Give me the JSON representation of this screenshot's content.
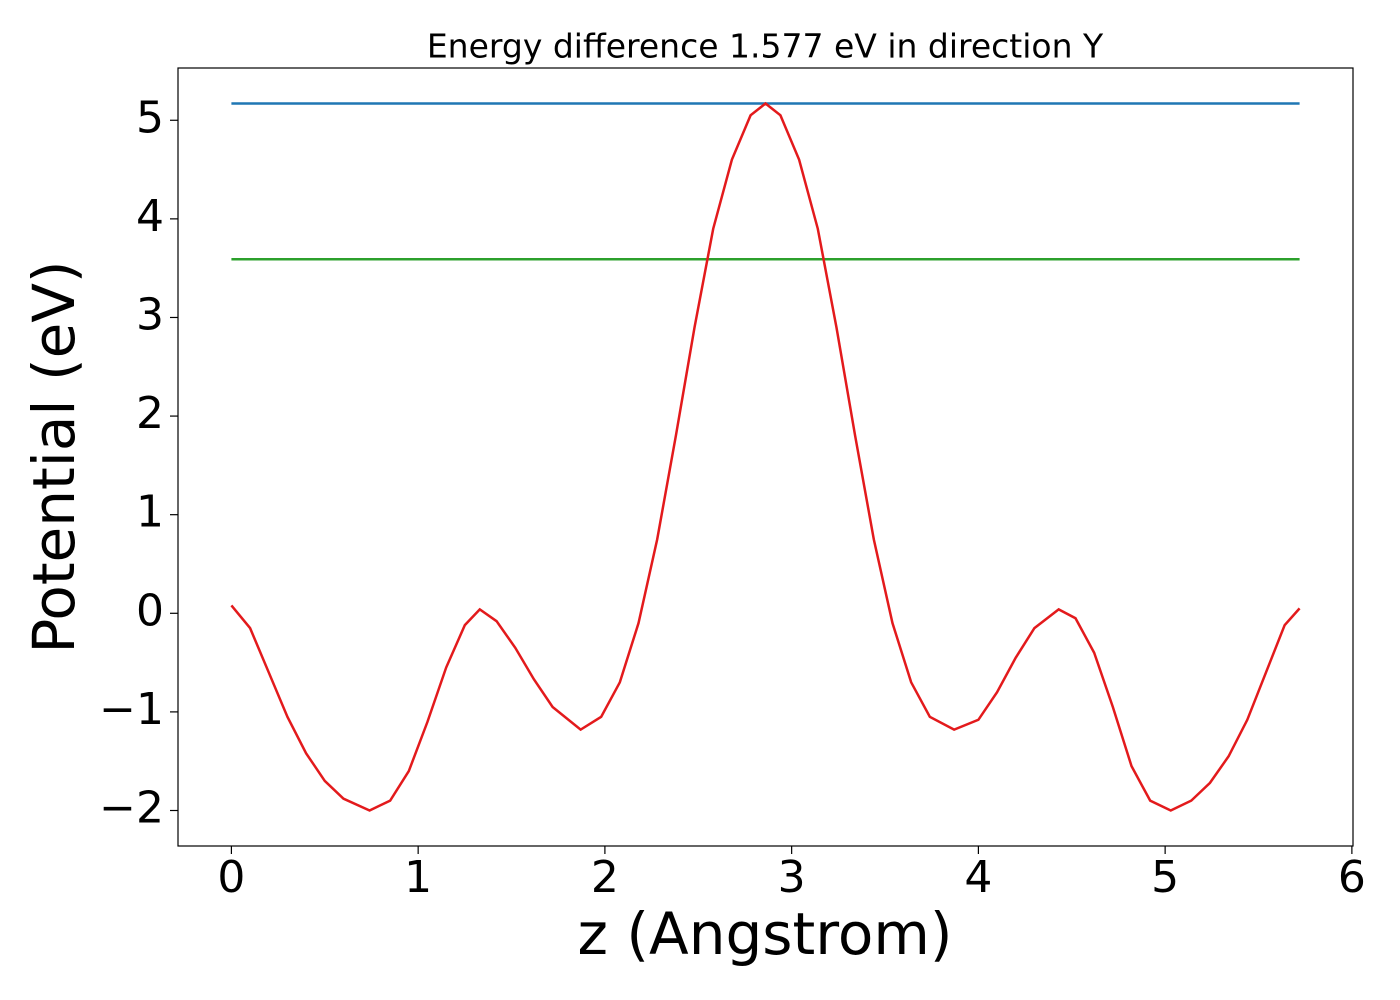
{
  "chart_data": {
    "type": "line",
    "title": "Energy difference 1.577 eV in direction Y",
    "xlabel": "z (Angstrom)",
    "ylabel": "Potential (eV)",
    "xlim": [
      -0.286,
      6.006
    ],
    "ylim": [
      -2.36,
      5.53
    ],
    "xticks": [
      0,
      1,
      2,
      3,
      4,
      5,
      6
    ],
    "yticks": [
      {
        "value": -2,
        "label": "−2"
      },
      {
        "value": -1,
        "label": "−1"
      },
      0,
      1,
      2,
      3,
      4,
      5
    ],
    "series": [
      {
        "color": "#1f77b4",
        "x": [
          0,
          5.72
        ],
        "values": [
          5.17,
          5.17
        ]
      },
      {
        "color": "#2ca02c",
        "x": [
          0,
          5.72
        ],
        "values": [
          3.59,
          3.59
        ]
      },
      {
        "color": "#e31a1c",
        "x": [
          0,
          0.1,
          0.2,
          0.3,
          0.4,
          0.5,
          0.6,
          0.74,
          0.85,
          0.95,
          1.05,
          1.15,
          1.25,
          1.33,
          1.42,
          1.52,
          1.62,
          1.72,
          1.87,
          1.98,
          2.08,
          2.18,
          2.28,
          2.38,
          2.48,
          2.58,
          2.68,
          2.78,
          2.86,
          2.94,
          3.04,
          3.14,
          3.24,
          3.34,
          3.44,
          3.54,
          3.64,
          3.74,
          3.87,
          4.0,
          4.1,
          4.2,
          4.3,
          4.43,
          4.52,
          4.62,
          4.72,
          4.82,
          4.92,
          5.03,
          5.14,
          5.24,
          5.34,
          5.44,
          5.54,
          5.64,
          5.72
        ],
        "values": [
          0.08,
          -0.15,
          -0.6,
          -1.05,
          -1.42,
          -1.7,
          -1.88,
          -2.0,
          -1.9,
          -1.6,
          -1.1,
          -0.55,
          -0.12,
          0.04,
          -0.08,
          -0.35,
          -0.67,
          -0.95,
          -1.18,
          -1.05,
          -0.7,
          -0.1,
          0.75,
          1.8,
          2.9,
          3.9,
          4.6,
          5.05,
          5.17,
          5.05,
          4.6,
          3.9,
          2.9,
          1.8,
          0.75,
          -0.1,
          -0.7,
          -1.05,
          -1.18,
          -1.08,
          -0.8,
          -0.45,
          -0.15,
          0.04,
          -0.05,
          -0.4,
          -0.95,
          -1.55,
          -1.9,
          -2.0,
          -1.9,
          -1.72,
          -1.45,
          -1.08,
          -0.6,
          -0.12,
          0.05
        ]
      }
    ]
  }
}
